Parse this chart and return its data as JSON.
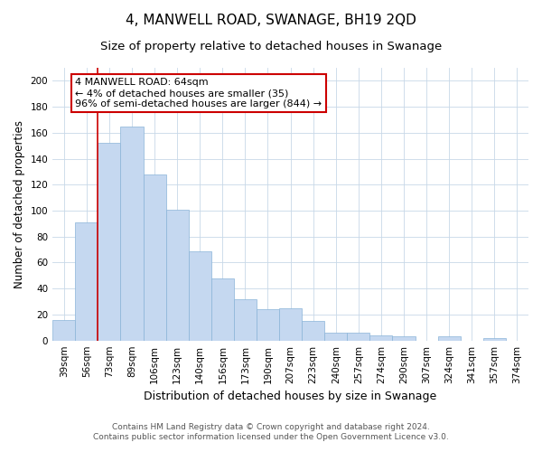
{
  "title": "4, MANWELL ROAD, SWANAGE, BH19 2QD",
  "subtitle": "Size of property relative to detached houses in Swanage",
  "xlabel": "Distribution of detached houses by size in Swanage",
  "ylabel": "Number of detached properties",
  "bar_labels": [
    "39sqm",
    "56sqm",
    "73sqm",
    "89sqm",
    "106sqm",
    "123sqm",
    "140sqm",
    "156sqm",
    "173sqm",
    "190sqm",
    "207sqm",
    "223sqm",
    "240sqm",
    "257sqm",
    "274sqm",
    "290sqm",
    "307sqm",
    "324sqm",
    "341sqm",
    "357sqm",
    "374sqm"
  ],
  "bar_values": [
    16,
    91,
    152,
    165,
    128,
    101,
    69,
    48,
    32,
    24,
    25,
    15,
    6,
    6,
    4,
    3,
    0,
    3,
    0,
    2,
    0
  ],
  "bar_color": "#c5d8f0",
  "bar_edge_color": "#8ab4d8",
  "vline_color": "#cc0000",
  "ylim": [
    0,
    210
  ],
  "yticks": [
    0,
    20,
    40,
    60,
    80,
    100,
    120,
    140,
    160,
    180,
    200
  ],
  "annotation_title": "4 MANWELL ROAD: 64sqm",
  "annotation_line1": "← 4% of detached houses are smaller (35)",
  "annotation_line2": "96% of semi-detached houses are larger (844) →",
  "annotation_box_color": "#ffffff",
  "annotation_box_edge": "#cc0000",
  "footnote1": "Contains HM Land Registry data © Crown copyright and database right 2024.",
  "footnote2": "Contains public sector information licensed under the Open Government Licence v3.0.",
  "title_fontsize": 11,
  "subtitle_fontsize": 9.5,
  "xlabel_fontsize": 9,
  "ylabel_fontsize": 8.5,
  "tick_fontsize": 7.5,
  "annot_fontsize": 8,
  "footnote_fontsize": 6.5
}
